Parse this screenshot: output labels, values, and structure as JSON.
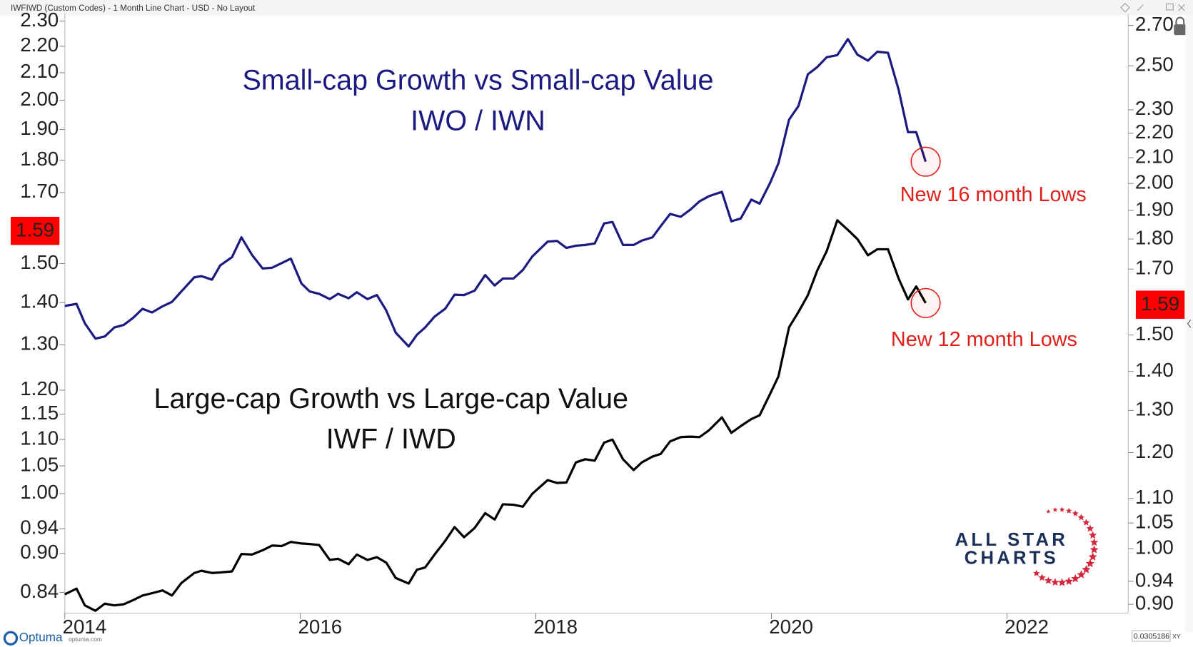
{
  "header": "IWFIWD (Custom Codes) - 1 Month Line Chart - USD - No Layout",
  "chart_data": {
    "type": "line",
    "log_scale": true,
    "grid": false,
    "x": [
      2014.0,
      2014.1,
      2014.17,
      2014.26,
      2014.34,
      2014.42,
      2014.5,
      2014.58,
      2014.66,
      2014.74,
      2014.83,
      2014.91,
      2014.99,
      2015.1,
      2015.16,
      2015.25,
      2015.32,
      2015.42,
      2015.5,
      2015.59,
      2015.68,
      2015.76,
      2015.84,
      2015.92,
      2016.01,
      2016.08,
      2016.16,
      2016.25,
      2016.32,
      2016.41,
      2016.48,
      2016.57,
      2016.65,
      2016.73,
      2016.81,
      2016.92,
      2016.99,
      2017.06,
      2017.14,
      2017.23,
      2017.31,
      2017.39,
      2017.48,
      2017.57,
      2017.65,
      2017.72,
      2017.81,
      2017.89,
      2017.97,
      2018.1,
      2018.18,
      2018.26,
      2018.34,
      2018.42,
      2018.5,
      2018.58,
      2018.65,
      2018.74,
      2018.83,
      2018.9,
      2018.99,
      2019.06,
      2019.14,
      2019.23,
      2019.31,
      2019.39,
      2019.47,
      2019.58,
      2019.66,
      2019.74,
      2019.83,
      2019.9,
      2019.99,
      2020.06,
      2020.15,
      2020.23,
      2020.31,
      2020.39,
      2020.47,
      2020.56,
      2020.65,
      2020.73,
      2020.82,
      2020.9,
      2020.99,
      2021.08,
      2021.16,
      2021.23,
      2021.31
    ],
    "series": [
      {
        "name": "IWO / IWN",
        "color": "#1a1a80",
        "axis": "y",
        "values": [
          1.392,
          1.397,
          1.35,
          1.314,
          1.319,
          1.34,
          1.346,
          1.363,
          1.385,
          1.376,
          1.391,
          1.402,
          1.428,
          1.464,
          1.467,
          1.458,
          1.495,
          1.517,
          1.571,
          1.523,
          1.487,
          1.489,
          1.501,
          1.513,
          1.448,
          1.428,
          1.422,
          1.409,
          1.422,
          1.411,
          1.426,
          1.409,
          1.419,
          1.381,
          1.328,
          1.296,
          1.323,
          1.34,
          1.366,
          1.385,
          1.42,
          1.419,
          1.43,
          1.47,
          1.443,
          1.461,
          1.461,
          1.483,
          1.519,
          1.559,
          1.561,
          1.542,
          1.548,
          1.55,
          1.554,
          1.61,
          1.614,
          1.55,
          1.55,
          1.562,
          1.571,
          1.602,
          1.637,
          1.629,
          1.649,
          1.674,
          1.689,
          1.702,
          1.616,
          1.624,
          1.679,
          1.667,
          1.73,
          1.79,
          1.933,
          1.98,
          2.094,
          2.121,
          2.158,
          2.166,
          2.228,
          2.168,
          2.145,
          2.179,
          2.175,
          2.038,
          1.891,
          1.891,
          1.795
        ]
      },
      {
        "name": "IWF / IWD",
        "color": "#000000",
        "axis": "y2",
        "values": [
          0.917,
          0.927,
          0.898,
          0.889,
          0.901,
          0.898,
          0.9,
          0.907,
          0.915,
          0.919,
          0.924,
          0.915,
          0.937,
          0.955,
          0.959,
          0.955,
          0.956,
          0.958,
          0.99,
          0.989,
          0.997,
          1.006,
          1.005,
          1.013,
          1.01,
          1.009,
          1.007,
          0.979,
          0.981,
          0.971,
          0.989,
          0.979,
          0.984,
          0.974,
          0.946,
          0.936,
          0.961,
          0.965,
          0.989,
          1.015,
          1.042,
          1.022,
          1.04,
          1.07,
          1.057,
          1.088,
          1.087,
          1.083,
          1.11,
          1.139,
          1.133,
          1.134,
          1.178,
          1.185,
          1.182,
          1.223,
          1.23,
          1.185,
          1.161,
          1.178,
          1.191,
          1.197,
          1.226,
          1.236,
          1.237,
          1.236,
          1.252,
          1.283,
          1.246,
          1.262,
          1.279,
          1.288,
          1.342,
          1.387,
          1.522,
          1.567,
          1.618,
          1.696,
          1.759,
          1.865,
          1.831,
          1.8,
          1.745,
          1.765,
          1.765,
          1.67,
          1.605,
          1.645,
          1.594
        ]
      }
    ],
    "xlim": [
      2014,
      2023.03
    ],
    "xticks": [
      2014,
      2016,
      2018,
      2020,
      2022
    ],
    "ylim": [
      0.81,
      2.33
    ],
    "yticks": [
      {
        "value": 2.3,
        "label": "2.30"
      },
      {
        "value": 2.2,
        "label": "2.20"
      },
      {
        "value": 2.1,
        "label": "2.10"
      },
      {
        "value": 2.0,
        "label": "2.00"
      },
      {
        "value": 1.9,
        "label": "1.90"
      },
      {
        "value": 1.8,
        "label": "1.80"
      },
      {
        "value": 1.7,
        "label": "1.70"
      },
      {
        "value": 1.5,
        "label": "1.50"
      },
      {
        "value": 1.4,
        "label": "1.40"
      },
      {
        "value": 1.3,
        "label": "1.30"
      },
      {
        "value": 1.2,
        "label": "1.20"
      },
      1.15,
      {
        "value": 1.1,
        "label": "1.10"
      },
      1.05,
      {
        "value": 1.0,
        "label": "1.00"
      },
      0.94,
      {
        "value": 0.9,
        "label": "0.90"
      },
      0.84
    ],
    "y2lim": [
      0.885,
      2.76
    ],
    "y2ticks": [
      {
        "value": 2.7,
        "label": "2.70"
      },
      {
        "value": 2.5,
        "label": "2.50"
      },
      {
        "value": 2.3,
        "label": "2.30"
      },
      {
        "value": 2.2,
        "label": "2.20"
      },
      {
        "value": 2.1,
        "label": "2.10"
      },
      {
        "value": 2.0,
        "label": "2.00"
      },
      {
        "value": 1.9,
        "label": "1.90"
      },
      {
        "value": 1.8,
        "label": "1.80"
      },
      {
        "value": 1.7,
        "label": "1.70"
      },
      {
        "value": 1.5,
        "label": "1.50"
      },
      {
        "value": 1.4,
        "label": "1.40"
      },
      {
        "value": 1.3,
        "label": "1.30"
      },
      {
        "value": 1.2,
        "label": "1.20"
      },
      {
        "value": 1.1,
        "label": "1.10"
      },
      1.05,
      {
        "value": 1.0,
        "label": "1.00"
      },
      0.94,
      {
        "value": 0.9,
        "label": "0.90"
      }
    ],
    "y_marker": 1.59,
    "y2_marker": 1.59,
    "marker_color": "#ff0000",
    "annotations": {
      "small_title": "Small-cap Growth vs Small-cap Value",
      "small_ticker": "IWO / IWN",
      "large_title": "Large-cap Growth vs Large-cap Value",
      "large_ticker": "IWF / IWD",
      "small_low": "New 16 month Lows",
      "large_low": "New 12 month Lows"
    }
  },
  "logo": {
    "line1": "ALL STAR",
    "line2": "CHARTS"
  },
  "footer": {
    "brand": "Optuma",
    "site": "optuma.com",
    "readout": "0.0305186",
    "mode": "XY"
  }
}
